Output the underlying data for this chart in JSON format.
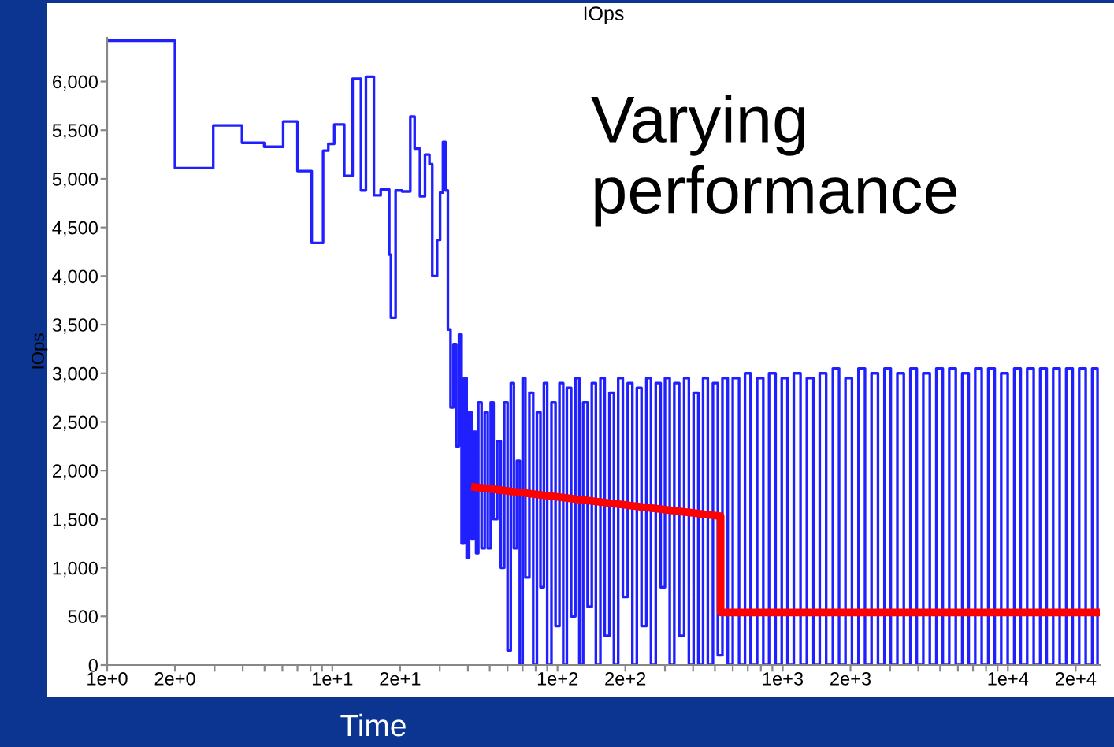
{
  "chart_data": {
    "type": "step",
    "title": "IOps",
    "xlabel": "Time",
    "ylabel": "IOps",
    "annotations": [
      "Varying performance"
    ],
    "log": "x",
    "grid": false,
    "line_style": "solid",
    "xlim": [
      1,
      25600
    ],
    "ylim": [
      0,
      6450
    ],
    "xticks": [
      {
        "value": 1,
        "label": "1e+0"
      },
      {
        "value": 2,
        "label": "2e+0"
      },
      {
        "value": 3,
        "label": null
      },
      {
        "value": 4,
        "label": null
      },
      {
        "value": 5,
        "label": null
      },
      {
        "value": 6,
        "label": null
      },
      {
        "value": 7,
        "label": null
      },
      {
        "value": 8,
        "label": null
      },
      {
        "value": 9,
        "label": null
      },
      {
        "value": 10,
        "label": "1e+1"
      },
      {
        "value": 20,
        "label": "2e+1"
      },
      {
        "value": 30,
        "label": null
      },
      {
        "value": 40,
        "label": null
      },
      {
        "value": 50,
        "label": null
      },
      {
        "value": 60,
        "label": null
      },
      {
        "value": 70,
        "label": null
      },
      {
        "value": 80,
        "label": null
      },
      {
        "value": 90,
        "label": null
      },
      {
        "value": 100,
        "label": "1e+2"
      },
      {
        "value": 200,
        "label": "2e+2"
      },
      {
        "value": 300,
        "label": null
      },
      {
        "value": 400,
        "label": null
      },
      {
        "value": 500,
        "label": null
      },
      {
        "value": 600,
        "label": null
      },
      {
        "value": 700,
        "label": null
      },
      {
        "value": 800,
        "label": null
      },
      {
        "value": 900,
        "label": null
      },
      {
        "value": 1000,
        "label": "1e+3"
      },
      {
        "value": 2000,
        "label": "2e+3"
      },
      {
        "value": 3000,
        "label": null
      },
      {
        "value": 4000,
        "label": null
      },
      {
        "value": 5000,
        "label": null
      },
      {
        "value": 6000,
        "label": null
      },
      {
        "value": 7000,
        "label": null
      },
      {
        "value": 8000,
        "label": null
      },
      {
        "value": 9000,
        "label": null
      },
      {
        "value": 10000,
        "label": "1e+4"
      },
      {
        "value": 20000,
        "label": "2e+4"
      }
    ],
    "yticks": [
      {
        "value": 0,
        "label": "0"
      },
      {
        "value": 500,
        "label": "500"
      },
      {
        "value": 1000,
        "label": "1,000"
      },
      {
        "value": 1500,
        "label": "1,500"
      },
      {
        "value": 2000,
        "label": "2,000"
      },
      {
        "value": 2500,
        "label": "2,500"
      },
      {
        "value": 3000,
        "label": "3,000"
      },
      {
        "value": 3500,
        "label": "3,500"
      },
      {
        "value": 4000,
        "label": "4,000"
      },
      {
        "value": 4500,
        "label": "4,500"
      },
      {
        "value": 5000,
        "label": "5,000"
      },
      {
        "value": 5500,
        "label": "5,500"
      },
      {
        "value": 6000,
        "label": "6,000"
      }
    ],
    "series": [
      {
        "color": "#2020ff",
        "x": [
          1,
          2,
          2.96,
          3.97,
          4.98,
          6.05,
          7.0,
          8.1,
          9.1,
          9.6,
          10.2,
          11.3,
          12.3,
          13.4,
          14.1,
          15.3,
          16.4,
          17.9,
          18.2,
          19.1,
          20.4,
          22.2,
          23.2,
          24.5,
          25.8,
          27,
          27.8,
          29.2,
          30.1,
          31.0,
          31.8,
          32.6,
          33.5,
          34.5,
          35.5,
          36.5,
          37.5,
          38.5,
          39.5,
          40.5,
          41.5,
          42.5,
          43.5,
          44.5,
          46,
          47.5,
          49,
          50.5,
          52,
          54,
          56,
          58,
          60,
          62,
          64,
          66,
          68,
          70,
          72,
          75,
          78,
          81,
          84,
          87,
          90,
          94,
          98,
          102,
          106,
          110,
          115,
          120,
          125,
          130,
          136,
          142,
          148,
          155,
          162,
          170,
          178,
          186,
          195,
          205,
          215,
          225,
          236,
          248,
          260,
          273,
          287,
          300,
          315,
          330,
          347,
          365,
          383,
          402,
          422,
          443,
          465,
          490,
          515,
          540,
          570,
          600,
          640,
          680,
          720,
          770,
          820,
          870,
          930,
          990,
          1050,
          1120,
          1200,
          1280,
          1370,
          1460,
          1560,
          1670,
          1780,
          1900,
          2030,
          2170,
          2320,
          2480,
          2650,
          2830,
          3020,
          3230,
          3450,
          3690,
          3940,
          4210,
          4500,
          4810,
          5140,
          5490,
          5870,
          6270,
          6700,
          7160,
          7650,
          8180,
          8740,
          9340,
          9980,
          10670,
          11400,
          12180,
          13020,
          13910,
          14870,
          15890,
          16980,
          18150,
          19400,
          20730,
          22160,
          23680,
          25000
        ],
        "values": [
          6420,
          5110,
          5550,
          5370,
          5330,
          5590,
          5080,
          4340,
          5290,
          5360,
          5560,
          5030,
          6030,
          4880,
          6050,
          4830,
          4890,
          4220,
          3570,
          4880,
          4870,
          5640,
          5310,
          4820,
          5250,
          5150,
          4000,
          4370,
          4860,
          5380,
          4880,
          3450,
          2650,
          3300,
          2250,
          3400,
          1250,
          2950,
          1100,
          2600,
          1300,
          2400,
          1150,
          2700,
          1200,
          2600,
          1200,
          2700,
          1500,
          2300,
          1000,
          2700,
          150,
          2900,
          1200,
          2100,
          0,
          2950,
          900,
          2800,
          0,
          2600,
          800,
          2900,
          0,
          2700,
          400,
          2900,
          0,
          2850,
          500,
          2950,
          0,
          2700,
          600,
          2900,
          0,
          2950,
          300,
          2800,
          0,
          2950,
          700,
          2900,
          0,
          2850,
          400,
          2950,
          0,
          2900,
          800,
          2950,
          0,
          2900,
          300,
          2950,
          0,
          2800,
          0,
          2950,
          0,
          2900,
          100,
          2950,
          0,
          2950,
          0,
          3000,
          0,
          2950,
          0,
          3000,
          0,
          2950,
          0,
          3000,
          0,
          2950,
          0,
          3000,
          0,
          3050,
          0,
          2950,
          0,
          3050,
          0,
          3000,
          0,
          3050,
          0,
          3000,
          0,
          3050,
          0,
          3000,
          0,
          3050,
          0,
          3050,
          0,
          3000,
          0,
          3050,
          0,
          3050,
          0,
          3000,
          0,
          3050,
          0,
          3050,
          0,
          3050,
          0,
          3050,
          0,
          3050,
          0,
          3050,
          0,
          3050,
          0
        ]
      },
      {
        "type": "line",
        "color": "#ff0000",
        "x": [
          43,
          530,
          530,
          25000
        ],
        "values": [
          1830,
          1530,
          540,
          540
        ]
      }
    ]
  }
}
